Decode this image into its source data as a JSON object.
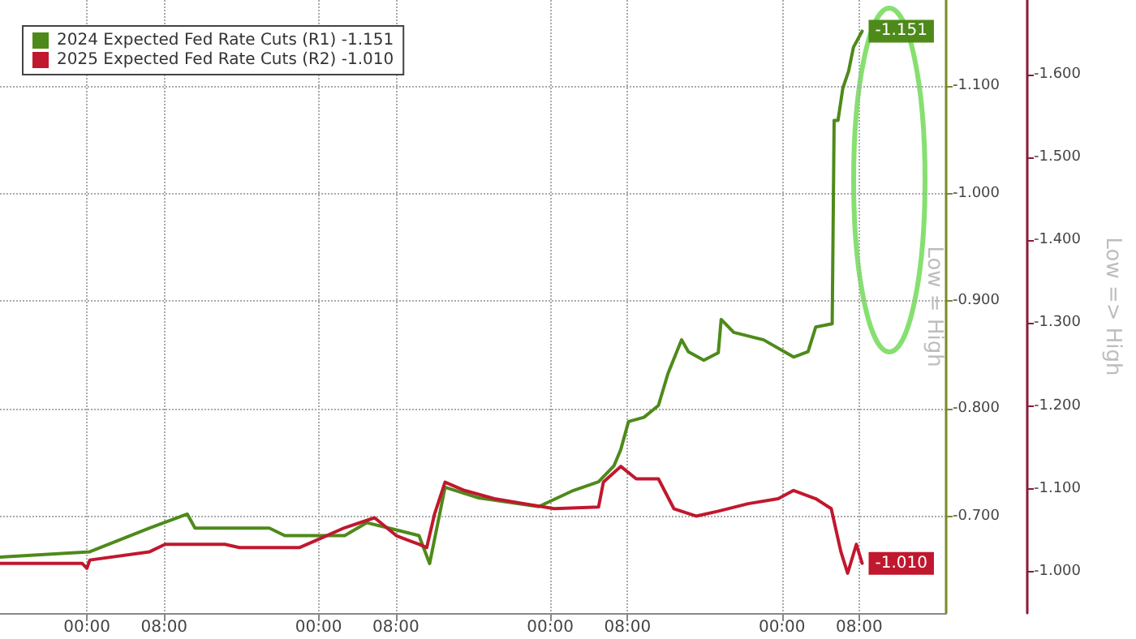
{
  "chart_data": {
    "type": "line",
    "ylabel": "Low = High",
    "y2label": "Low => High",
    "xlim": [
      "2024-03-03T15:00",
      "2024-03-07T17:00"
    ],
    "xticks": [
      {
        "value": "2024-03-04T00:00",
        "label": "00:00"
      },
      {
        "value": "2024-03-04T08:00",
        "label": "08:00"
      },
      {
        "value": "2024-03-05T00:00",
        "label": "00:00"
      },
      {
        "value": "2024-03-05T08:00",
        "label": "08:00"
      },
      {
        "value": "2024-03-06T00:00",
        "label": "00:00"
      },
      {
        "value": "2024-03-06T08:00",
        "label": "08:00"
      },
      {
        "value": "2024-03-07T00:00",
        "label": "00:00"
      },
      {
        "value": "2024-03-07T08:00",
        "label": "08:00"
      }
    ],
    "ylim": [
      -0.61,
      -1.18
    ],
    "yticks": [
      {
        "value": -0.7,
        "label": "-0.700"
      },
      {
        "value": -0.8,
        "label": "-0.800"
      },
      {
        "value": -0.9,
        "label": "-0.900"
      },
      {
        "value": -1.0,
        "label": "-1.000"
      },
      {
        "value": -1.1,
        "label": "-1.100"
      }
    ],
    "y2lim": [
      -0.95,
      -1.69
    ],
    "y2ticks": [
      {
        "value": -1.0,
        "label": "-1.000"
      },
      {
        "value": -1.1,
        "label": "-1.100"
      },
      {
        "value": -1.2,
        "label": "-1.200"
      },
      {
        "value": -1.3,
        "label": "-1.300"
      },
      {
        "value": -1.4,
        "label": "-1.400"
      },
      {
        "value": -1.5,
        "label": "-1.500"
      },
      {
        "value": -1.6,
        "label": "-1.600"
      }
    ],
    "grid": true,
    "legend": "top left",
    "marker": "none",
    "line_style": "solid",
    "series": [
      {
        "name": "2024 Expected Fed Rate Cuts (R1) -1.151",
        "color": "#4e8a1a",
        "x": [
          "2024-03-03T15:00",
          "2024-03-04T00:18",
          "2024-03-04T06:30",
          "2024-03-04T10:24",
          "2024-03-04T11:12",
          "2024-03-04T18:54",
          "2024-03-04T20:30",
          "2024-03-05T02:42",
          "2024-03-05T05:00",
          "2024-03-05T07:18",
          "2024-03-05T10:24",
          "2024-03-05T11:30",
          "2024-03-05T13:06",
          "2024-03-05T16:36",
          "2024-03-05T22:48",
          "2024-03-06T02:24",
          "2024-03-06T05:00",
          "2024-03-06T06:36",
          "2024-03-06T07:18",
          "2024-03-06T08:06",
          "2024-03-06T09:42",
          "2024-03-06T11:12",
          "2024-03-06T12:12",
          "2024-03-06T13:36",
          "2024-03-06T14:18",
          "2024-03-06T15:54",
          "2024-03-06T17:24",
          "2024-03-06T17:42",
          "2024-03-06T19:00",
          "2024-03-06T22:06",
          "2024-03-07T01:12",
          "2024-03-07T02:42",
          "2024-03-07T03:30",
          "2024-03-07T05:12",
          "2024-03-07T05:24",
          "2024-03-07T05:48",
          "2024-03-07T06:18",
          "2024-03-07T06:54",
          "2024-03-07T07:24",
          "2024-03-07T08:18"
        ],
        "values": [
          -0.662,
          -0.667,
          -0.689,
          -0.702,
          -0.689,
          -0.689,
          -0.682,
          -0.682,
          -0.694,
          -0.689,
          -0.682,
          -0.656,
          -0.727,
          -0.717,
          -0.709,
          -0.724,
          -0.732,
          -0.747,
          -0.762,
          -0.788,
          -0.792,
          -0.803,
          -0.833,
          -0.864,
          -0.853,
          -0.845,
          -0.852,
          -0.883,
          -0.871,
          -0.864,
          -0.848,
          -0.853,
          -0.876,
          -0.879,
          -1.068,
          -1.068,
          -1.098,
          -1.114,
          -1.136,
          -1.151
        ],
        "value_labels": [
          null,
          null,
          null,
          null,
          null,
          null,
          null,
          null,
          null,
          null,
          null,
          null,
          null,
          null,
          null,
          null,
          null,
          null,
          null,
          null,
          null,
          null,
          null,
          null,
          null,
          null,
          null,
          null,
          null,
          null,
          null,
          null,
          null,
          null,
          null,
          null,
          null,
          null,
          null,
          "-1.151"
        ]
      },
      {
        "name": "2025 Expected Fed Rate Cuts (R2) -1.010",
        "color": "#c0182e",
        "axis": "y2",
        "x": [
          "2024-03-03T15:00",
          "2024-03-03T23:30",
          "2024-03-04T00:00",
          "2024-03-04T00:18",
          "2024-03-04T06:30",
          "2024-03-04T08:06",
          "2024-03-04T14:18",
          "2024-03-04T15:48",
          "2024-03-04T22:00",
          "2024-03-04T23:36",
          "2024-03-05T02:42",
          "2024-03-05T05:48",
          "2024-03-05T08:06",
          "2024-03-05T10:24",
          "2024-03-05T11:12",
          "2024-03-05T12:00",
          "2024-03-05T13:06",
          "2024-03-05T15:06",
          "2024-03-05T18:12",
          "2024-03-05T21:18",
          "2024-03-06T00:24",
          "2024-03-06T05:00",
          "2024-03-06T05:30",
          "2024-03-06T07:18",
          "2024-03-06T08:54",
          "2024-03-06T11:12",
          "2024-03-06T12:48",
          "2024-03-06T15:06",
          "2024-03-06T17:24",
          "2024-03-06T20:30",
          "2024-03-06T23:36",
          "2024-03-07T01:12",
          "2024-03-07T03:30",
          "2024-03-07T05:06",
          "2024-03-07T06:06",
          "2024-03-07T06:48",
          "2024-03-07T07:42",
          "2024-03-07T08:18"
        ],
        "values": [
          -1.01,
          -1.01,
          -1.004,
          -1.014,
          -1.024,
          -1.033,
          -1.033,
          -1.029,
          -1.029,
          -1.037,
          -1.053,
          -1.065,
          -1.043,
          -1.033,
          -1.029,
          -1.069,
          -1.108,
          -1.098,
          -1.088,
          -1.082,
          -1.076,
          -1.078,
          -1.108,
          -1.127,
          -1.112,
          -1.112,
          -1.076,
          -1.067,
          -1.073,
          -1.082,
          -1.088,
          -1.098,
          -1.088,
          -1.076,
          -1.024,
          -0.998,
          -1.033,
          -1.01
        ],
        "value_labels": [
          null,
          null,
          null,
          null,
          null,
          null,
          null,
          null,
          null,
          null,
          null,
          null,
          null,
          null,
          null,
          null,
          null,
          null,
          null,
          null,
          null,
          null,
          null,
          null,
          null,
          null,
          null,
          null,
          null,
          null,
          null,
          null,
          null,
          null,
          null,
          null,
          null,
          "-1.010"
        ]
      }
    ]
  }
}
